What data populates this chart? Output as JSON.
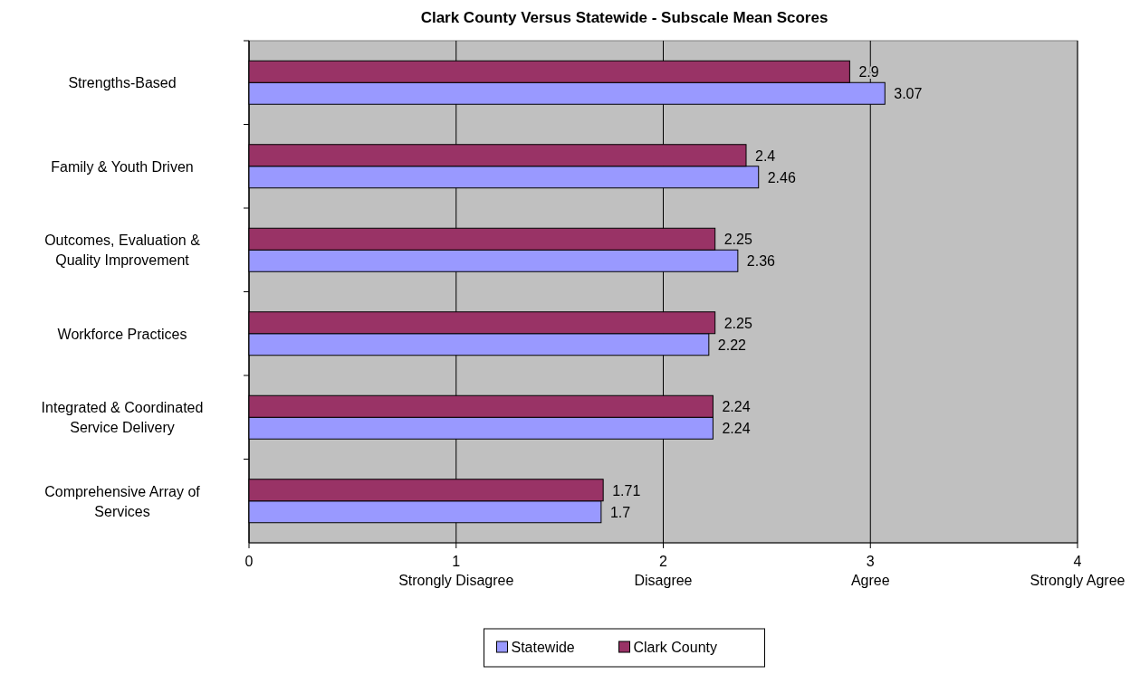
{
  "chart_data": {
    "type": "bar",
    "orientation": "horizontal",
    "title": "Clark County Versus Statewide - Subscale Mean Scores",
    "categories": [
      "Strengths-Based",
      "Family & Youth Driven",
      "Outcomes, Evaluation & Quality Improvement",
      "Workforce Practices",
      "Integrated & Coordinated Service Delivery",
      "Comprehensive Array of Services"
    ],
    "series": [
      {
        "name": "Statewide",
        "color": "#9999ff",
        "values": [
          3.07,
          2.46,
          2.36,
          2.22,
          2.24,
          1.7
        ]
      },
      {
        "name": "Clark County",
        "color": "#993366",
        "values": [
          2.9,
          2.4,
          2.25,
          2.25,
          2.24,
          1.71
        ]
      }
    ],
    "xlim": [
      0,
      4
    ],
    "xticks": [
      0,
      {
        "value": 1,
        "label": "1\nStrongly Disagree"
      },
      {
        "value": 2,
        "label": "2\nDisagree"
      },
      {
        "value": 3,
        "label": "3\nAgree"
      },
      {
        "value": 4,
        "label": "4\nStrongly Agree"
      }
    ],
    "grid": "x",
    "legend": "bottom",
    "data_labels": true
  }
}
